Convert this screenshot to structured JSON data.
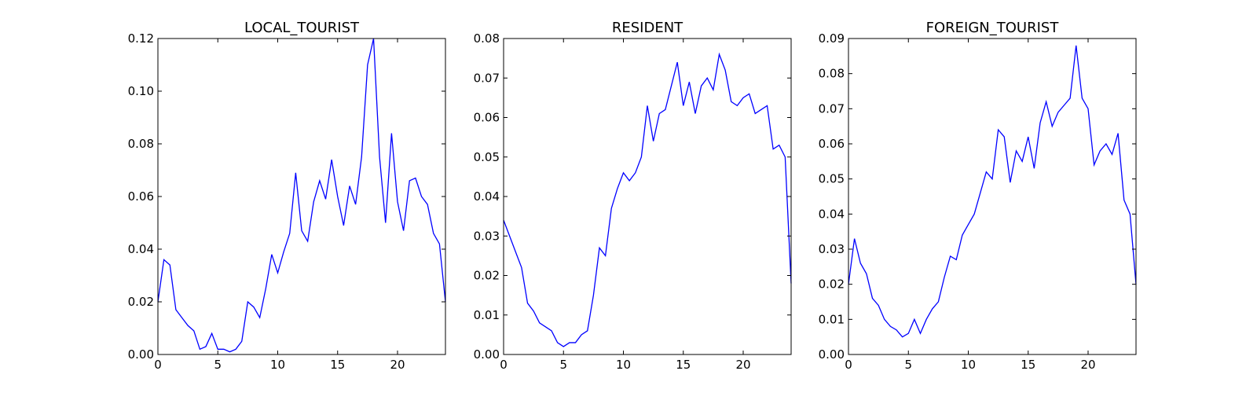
{
  "chart_data": [
    {
      "type": "line",
      "title": "LOCAL_TOURIST",
      "x": [
        0,
        0.5,
        1,
        1.5,
        2,
        2.5,
        3,
        3.5,
        4,
        4.5,
        5,
        5.5,
        6,
        6.5,
        7,
        7.5,
        8,
        8.5,
        9,
        9.5,
        10,
        10.5,
        11,
        11.5,
        12,
        12.5,
        13,
        13.5,
        14,
        14.5,
        15,
        15.5,
        16,
        16.5,
        17,
        17.5,
        18,
        18.5,
        19,
        19.5,
        20,
        20.5,
        21,
        21.5,
        22,
        22.5,
        23,
        23.5,
        24
      ],
      "series": [
        {
          "color": "#0000ff",
          "values": [
            0.02,
            0.036,
            0.034,
            0.017,
            0.014,
            0.011,
            0.009,
            0.002,
            0.003,
            0.008,
            0.002,
            0.002,
            0.001,
            0.002,
            0.005,
            0.02,
            0.018,
            0.014,
            0.025,
            0.038,
            0.031,
            0.039,
            0.046,
            0.069,
            0.047,
            0.043,
            0.058,
            0.066,
            0.059,
            0.074,
            0.06,
            0.049,
            0.064,
            0.057,
            0.075,
            0.11,
            0.12,
            0.075,
            0.05,
            0.084,
            0.058,
            0.047,
            0.066,
            0.067,
            0.06,
            0.057,
            0.046,
            0.042,
            0.02
          ]
        }
      ],
      "xlim": [
        0,
        24
      ],
      "xticks": [
        0,
        5,
        10,
        15,
        20
      ],
      "ylim": [
        0,
        0.12
      ],
      "yticks": [
        {
          "value": 0,
          "label": "0.00"
        },
        0.02,
        0.04,
        0.06,
        0.08,
        {
          "value": 0.1,
          "label": "0.10"
        },
        0.12
      ]
    },
    {
      "type": "line",
      "title": "RESIDENT",
      "x": [
        0,
        0.5,
        1,
        1.5,
        2,
        2.5,
        3,
        3.5,
        4,
        4.5,
        5,
        5.5,
        6,
        6.5,
        7,
        7.5,
        8,
        8.5,
        9,
        9.5,
        10,
        10.5,
        11,
        11.5,
        12,
        12.5,
        13,
        13.5,
        14,
        14.5,
        15,
        15.5,
        16,
        16.5,
        17,
        17.5,
        18,
        18.5,
        19,
        19.5,
        20,
        20.5,
        21,
        21.5,
        22,
        22.5,
        23,
        23.5,
        24
      ],
      "series": [
        {
          "color": "#0000ff",
          "values": [
            0.034,
            0.03,
            0.026,
            0.022,
            0.013,
            0.011,
            0.008,
            0.007,
            0.006,
            0.003,
            0.002,
            0.003,
            0.003,
            0.005,
            0.006,
            0.015,
            0.027,
            0.025,
            0.037,
            0.042,
            0.046,
            0.044,
            0.046,
            0.05,
            0.063,
            0.054,
            0.061,
            0.062,
            0.068,
            0.074,
            0.063,
            0.069,
            0.061,
            0.068,
            0.07,
            0.067,
            0.076,
            0.072,
            0.064,
            0.063,
            0.065,
            0.066,
            0.061,
            0.062,
            0.063,
            0.052,
            0.053,
            0.05,
            0.018
          ]
        }
      ],
      "xlim": [
        0,
        24
      ],
      "xticks": [
        0,
        5,
        10,
        15,
        20
      ],
      "ylim": [
        0,
        0.08
      ],
      "yticks": [
        {
          "value": 0,
          "label": "0.00"
        },
        0.01,
        0.02,
        0.03,
        0.04,
        0.05,
        0.06,
        0.07,
        0.08
      ]
    },
    {
      "type": "line",
      "title": "FOREIGN_TOURIST",
      "x": [
        0,
        0.5,
        1,
        1.5,
        2,
        2.5,
        3,
        3.5,
        4,
        4.5,
        5,
        5.5,
        6,
        6.5,
        7,
        7.5,
        8,
        8.5,
        9,
        9.5,
        10,
        10.5,
        11,
        11.5,
        12,
        12.5,
        13,
        13.5,
        14,
        14.5,
        15,
        15.5,
        16,
        16.5,
        17,
        17.5,
        18,
        18.5,
        19,
        19.5,
        20,
        20.5,
        21,
        21.5,
        22,
        22.5,
        23,
        23.5,
        24
      ],
      "series": [
        {
          "color": "#0000ff",
          "values": [
            0.02,
            0.033,
            0.026,
            0.023,
            0.016,
            0.014,
            0.01,
            0.008,
            0.007,
            0.005,
            0.006,
            0.01,
            0.006,
            0.01,
            0.013,
            0.015,
            0.022,
            0.028,
            0.027,
            0.034,
            0.037,
            0.04,
            0.046,
            0.052,
            0.05,
            0.064,
            0.062,
            0.049,
            0.058,
            0.055,
            0.062,
            0.053,
            0.066,
            0.072,
            0.065,
            0.069,
            0.071,
            0.073,
            0.088,
            0.073,
            0.07,
            0.054,
            0.058,
            0.06,
            0.057,
            0.063,
            0.044,
            0.04,
            0.02
          ]
        }
      ],
      "xlim": [
        0,
        24
      ],
      "xticks": [
        0,
        5,
        10,
        15,
        20
      ],
      "ylim": [
        0,
        0.09
      ],
      "yticks": [
        {
          "value": 0,
          "label": "0.00"
        },
        0.01,
        0.02,
        0.03,
        0.04,
        0.05,
        0.06,
        0.07,
        0.08,
        0.09
      ]
    }
  ]
}
